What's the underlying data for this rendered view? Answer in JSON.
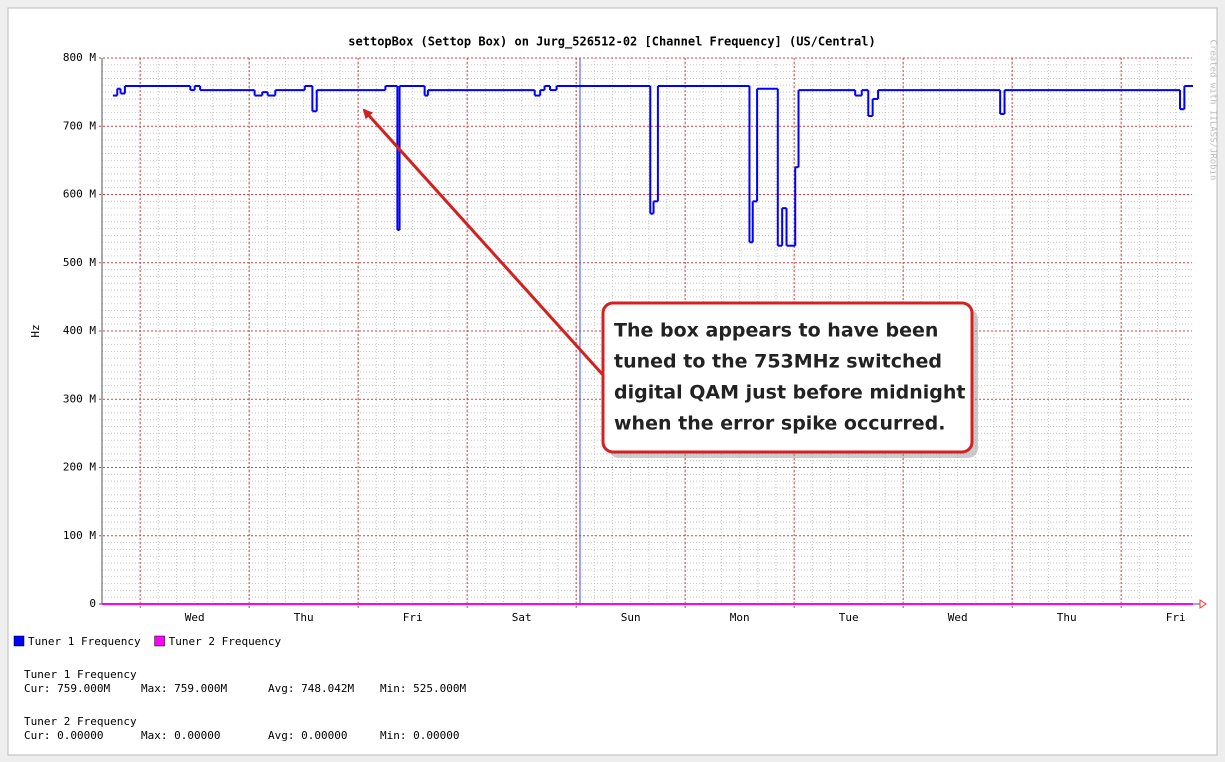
{
  "chart_data": {
    "type": "line",
    "title": "settopBox (Settop Box) on Jurg_526512-02 [Channel Frequency] (US/Central)",
    "ylabel": "Hz",
    "watermark": "Created with IILASS/JRobin",
    "xlim": [
      0,
      10
    ],
    "xticks": [
      {
        "value": 0.85,
        "label": "Wed"
      },
      {
        "value": 1.85,
        "label": "Thu"
      },
      {
        "value": 2.85,
        "label": "Fri"
      },
      {
        "value": 3.85,
        "label": "Sat"
      },
      {
        "value": 4.85,
        "label": "Sun"
      },
      {
        "value": 5.85,
        "label": "Mon"
      },
      {
        "value": 6.85,
        "label": "Tue"
      },
      {
        "value": 7.85,
        "label": "Wed"
      },
      {
        "value": 8.85,
        "label": "Thu"
      },
      {
        "value": 9.85,
        "label": "Fri"
      }
    ],
    "ylim": [
      0,
      800000000
    ],
    "yticks": [
      0,
      {
        "value": 100000000,
        "label": "100 M"
      },
      {
        "value": 200000000,
        "label": "200 M"
      },
      {
        "value": 300000000,
        "label": "300 M"
      },
      {
        "value": 400000000,
        "label": "400 M"
      },
      {
        "value": 500000000,
        "label": "500 M"
      },
      {
        "value": 600000000,
        "label": "600 M"
      },
      {
        "value": 700000000,
        "label": "700 M"
      },
      {
        "value": 800000000,
        "label": "800 M"
      }
    ],
    "grid": true,
    "step": true,
    "series": [
      {
        "name": "Tuner 1 Frequency",
        "color": "#0000ff",
        "x": [
          0.1,
          0.14,
          0.17,
          0.21,
          0.81,
          0.85,
          0.9,
          1.4,
          1.47,
          1.52,
          1.59,
          1.86,
          1.93,
          1.97,
          2.6,
          2.71,
          2.73,
          2.96,
          2.99,
          3.97,
          4.02,
          4.06,
          4.11,
          4.17,
          5.03,
          5.06,
          5.1,
          5.94,
          5.97,
          6.01,
          6.2,
          6.24,
          6.28,
          6.36,
          6.39,
          6.91,
          6.97,
          7.03,
          7.07,
          7.12,
          8.24,
          8.28,
          9.89,
          9.93,
          10.0
        ],
        "values": [
          745000000,
          755000000,
          748000000,
          759000000,
          753000000,
          759000000,
          753000000,
          745000000,
          750000000,
          745000000,
          753000000,
          759000000,
          722000000,
          753000000,
          759000000,
          548000000,
          759000000,
          745000000,
          753000000,
          745000000,
          753000000,
          759000000,
          753000000,
          759000000,
          572000000,
          590000000,
          759000000,
          530000000,
          590000000,
          755000000,
          525000000,
          580000000,
          525000000,
          640000000,
          753000000,
          745000000,
          753000000,
          715000000,
          740000000,
          753000000,
          718000000,
          753000000,
          725000000,
          759000000,
          759000000
        ]
      },
      {
        "name": "Tuner 2 Frequency",
        "color": "#ff00ff",
        "x": [
          0,
          10
        ],
        "values": [
          0,
          0
        ]
      }
    ],
    "stats": [
      [
        "Cur: 759.000M",
        "Max: 759.000M",
        "Avg: 748.042M",
        "Min: 525.000M"
      ],
      [
        "Cur: 0.00000",
        "Max: 0.00000",
        "Avg: 0.00000",
        "Min: 0.00000"
      ]
    ],
    "annotation": [
      "The box appears to have been",
      "tuned to the 753MHz switched",
      "digital QAM just before midnight",
      "when the error spike occurred."
    ]
  }
}
